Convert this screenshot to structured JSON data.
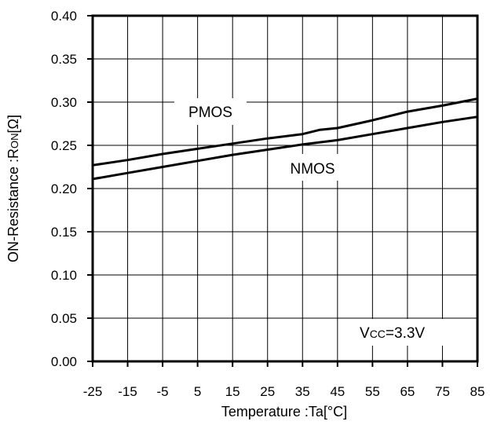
{
  "chart_data": {
    "type": "line",
    "xlabel": "Temperature :Ta[°C]",
    "ylabel": "ON-Resistance :R",
    "ylabel_sub": "ON",
    "ylabel_unit": "[Ω]",
    "x_ticks": [
      "-25",
      "-15",
      "-5",
      "5",
      "15",
      "25",
      "35",
      "45",
      "55",
      "65",
      "75",
      "85"
    ],
    "y_ticks": [
      "0.00",
      "0.05",
      "0.10",
      "0.15",
      "0.20",
      "0.25",
      "0.30",
      "0.35",
      "0.40"
    ],
    "xlim": [
      -25,
      85
    ],
    "ylim": [
      0,
      0.4
    ],
    "grid": true,
    "series": [
      {
        "name": "PMOS",
        "x": [
          -25,
          -15,
          -5,
          5,
          15,
          25,
          35,
          40,
          45,
          55,
          65,
          75,
          85
        ],
        "y": [
          0.227,
          0.233,
          0.24,
          0.246,
          0.252,
          0.258,
          0.263,
          0.268,
          0.27,
          0.279,
          0.289,
          0.296,
          0.304
        ]
      },
      {
        "name": "NMOS",
        "x": [
          -25,
          -15,
          -5,
          5,
          15,
          25,
          35,
          45,
          55,
          65,
          75,
          85
        ],
        "y": [
          0.211,
          0.218,
          0.225,
          0.232,
          0.239,
          0.245,
          0.251,
          0.256,
          0.263,
          0.27,
          0.277,
          0.283
        ]
      }
    ],
    "annotation": {
      "prefix": "V",
      "sub": "CC",
      "suffix": "=3.3V"
    },
    "colors": {
      "line": "#000000",
      "grid": "#000000",
      "background": "#ffffff"
    }
  }
}
